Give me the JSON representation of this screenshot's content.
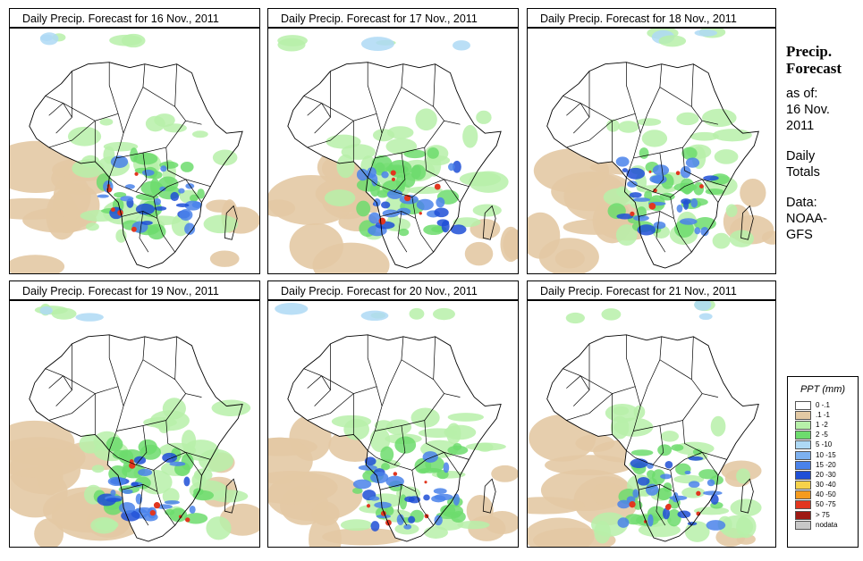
{
  "panels": [
    {
      "title": "Daily Precip. Forecast for  16 Nov., 2011"
    },
    {
      "title": "Daily Precip. Forecast for  17 Nov., 2011"
    },
    {
      "title": "Daily Precip. Forecast for  18 Nov., 2011"
    },
    {
      "title": "Daily Precip. Forecast for  19 Nov., 2011"
    },
    {
      "title": "Daily Precip. Forecast for  20 Nov., 2011"
    },
    {
      "title": "Daily Precip. Forecast for  21 Nov., 2011"
    }
  ],
  "sidebar": {
    "heading_line1": "Precip.",
    "heading_line2": "Forecast",
    "asof_label": "as of:",
    "date_line1": "16 Nov.",
    "date_line2": "2011",
    "daily_line1": "Daily",
    "daily_line2": "Totals",
    "data_label": "Data:",
    "source_line1": "NOAA-",
    "source_line2": "GFS"
  },
  "legend": {
    "title": "PPT (mm)",
    "items": [
      {
        "label": "0 -.1",
        "color": "#ffffff"
      },
      {
        "label": ".1 -1",
        "color": "#e3c9a4"
      },
      {
        "label": "1 -2",
        "color": "#b7f0a9"
      },
      {
        "label": "2 -5",
        "color": "#6ddc6d"
      },
      {
        "label": "5 -10",
        "color": "#aed9f5"
      },
      {
        "label": "10 -15",
        "color": "#7db1f0"
      },
      {
        "label": "15 -20",
        "color": "#4a82ea"
      },
      {
        "label": "20 -30",
        "color": "#1e4fd6"
      },
      {
        "label": "30 -40",
        "color": "#f6d24a"
      },
      {
        "label": "40 -50",
        "color": "#f59b1e"
      },
      {
        "label": "50 -75",
        "color": "#e2361f"
      },
      {
        "label": "> 75",
        "color": "#9e1a14"
      },
      {
        "label": "nodata",
        "color": "#c8c8c8"
      }
    ]
  },
  "colors": {
    "ocean": "#ffffff",
    "land": "#ffffff",
    "border": "#000000",
    "dry": "#e3c9a4",
    "light_green": "#b7f0a9",
    "green": "#6ddc6d",
    "light_blue": "#aed9f5",
    "blue": "#4a82ea",
    "dark_blue": "#1e4fd6",
    "heavy": "#e2361f"
  }
}
